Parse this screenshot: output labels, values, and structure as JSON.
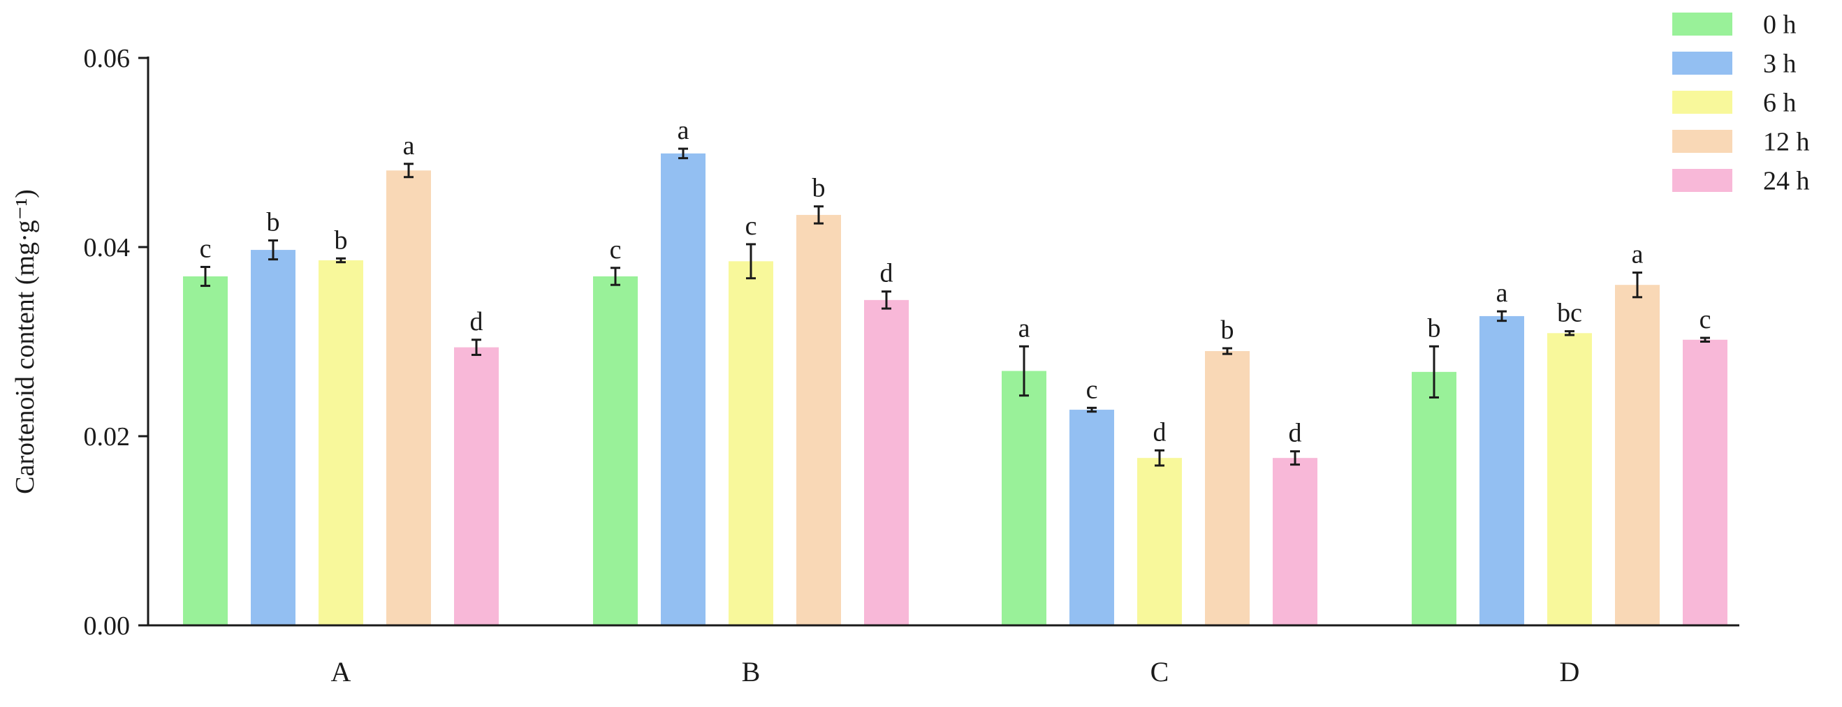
{
  "chart_data": {
    "type": "bar",
    "title": "",
    "xlabel": "",
    "ylabel": "Carotenoid content (mg·g⁻¹)",
    "ylim": [
      0,
      0.06
    ],
    "yticks": [
      0,
      0.02,
      0.04,
      0.06
    ],
    "ytick_labels": [
      "0.00",
      "0.02",
      "0.04",
      "0.06"
    ],
    "categories": [
      "A",
      "B",
      "C",
      "D"
    ],
    "legend_position": "top-right",
    "grid": false,
    "series": [
      {
        "name": "0 h",
        "color": "#99f199",
        "values": [
          0.0369,
          0.0369,
          0.0269,
          0.0268
        ],
        "errors": [
          0.001,
          0.0009,
          0.0026,
          0.0027
        ],
        "labels": [
          "c",
          "c",
          "a",
          "b"
        ]
      },
      {
        "name": "3 h",
        "color": "#93bff2",
        "values": [
          0.0397,
          0.0499,
          0.0228,
          0.0327
        ],
        "errors": [
          0.001,
          0.0005,
          0.0002,
          0.0005
        ],
        "labels": [
          "b",
          "a",
          "c",
          "a"
        ]
      },
      {
        "name": "6 h",
        "color": "#f8f89b",
        "values": [
          0.0386,
          0.0385,
          0.0177,
          0.0309
        ],
        "errors": [
          0.0002,
          0.0018,
          0.0008,
          0.0002
        ],
        "labels": [
          "b",
          "c",
          "d",
          "bc"
        ]
      },
      {
        "name": "12 h",
        "color": "#f9d8b6",
        "values": [
          0.0481,
          0.0434,
          0.029,
          0.036
        ],
        "errors": [
          0.0007,
          0.0009,
          0.0003,
          0.0013
        ],
        "labels": [
          "a",
          "b",
          "b",
          "a"
        ]
      },
      {
        "name": "24 h",
        "color": "#f8b8d8",
        "values": [
          0.0294,
          0.0344,
          0.0177,
          0.0302
        ],
        "errors": [
          0.0008,
          0.0009,
          0.0007,
          0.0002
        ],
        "labels": [
          "d",
          "d",
          "d",
          "c"
        ]
      }
    ]
  }
}
